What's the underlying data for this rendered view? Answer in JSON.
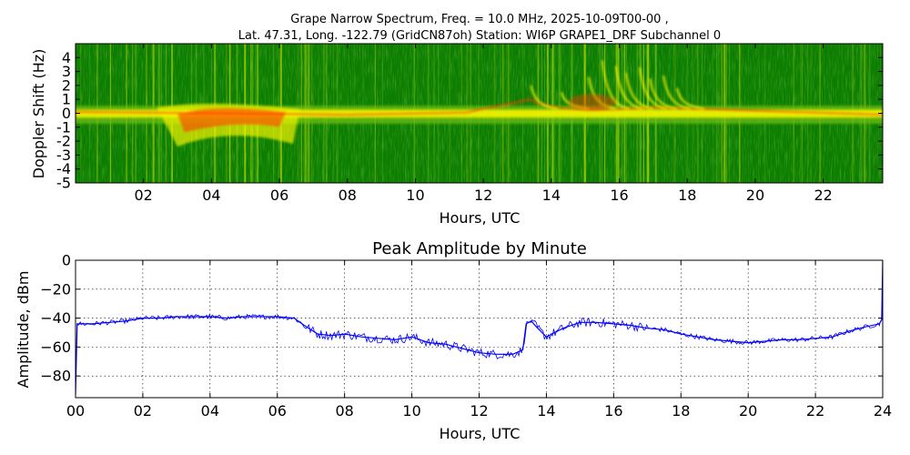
{
  "chart_data": [
    {
      "type": "heatmap",
      "title_line1": "Grape Narrow Spectrum, Freq. = 10.0 MHz, 2025-10-09T00-00 ,",
      "title_line2": "Lat.  47.31, Long. -122.79 (GridCN87oh) Station: WI6P GRAPE1_DRF Subchannel 0",
      "xlabel": "Hours, UTC",
      "ylabel": "Doppler Shift (Hz)",
      "xlim": [
        0,
        23.75
      ],
      "ylim": [
        -5,
        5
      ],
      "x_ticks": [
        2,
        4,
        6,
        8,
        10,
        12,
        14,
        16,
        18,
        20,
        22
      ],
      "x_tick_labels": [
        "02",
        "04",
        "06",
        "08",
        "10",
        "12",
        "14",
        "16",
        "18",
        "20",
        "22"
      ],
      "y_ticks": [
        4,
        3,
        2,
        1,
        0,
        -1,
        -2,
        -3,
        -4,
        -5
      ],
      "y_tick_labels": [
        "4",
        "3",
        "2",
        "1",
        "0",
        "-1",
        "-2",
        "-3",
        "-4",
        "-5"
      ],
      "colors": {
        "background": "#0b7d00",
        "mid": "#6fbf16",
        "high": "#f4f400",
        "peak": "#ff3a00"
      }
    },
    {
      "type": "line",
      "title": "Peak Amplitude by Minute",
      "xlabel": "Hours, UTC",
      "ylabel": "Amplitude, dBm",
      "xlim": [
        0,
        24
      ],
      "ylim": [
        -95,
        0
      ],
      "grid": true,
      "x_ticks": [
        0,
        2,
        4,
        6,
        8,
        10,
        12,
        14,
        16,
        18,
        20,
        22,
        24
      ],
      "x_tick_labels": [
        "00",
        "02",
        "04",
        "06",
        "08",
        "10",
        "12",
        "14",
        "16",
        "18",
        "20",
        "22",
        "24"
      ],
      "y_ticks": [
        0,
        -20,
        -40,
        -60,
        -80
      ],
      "y_tick_labels": [
        "0",
        "−20",
        "−40",
        "−60",
        "−80"
      ],
      "line_color": "#0000ff",
      "x": [
        0,
        0.05,
        0.5,
        1,
        1.5,
        2,
        2.5,
        3,
        3.5,
        4,
        4.5,
        5,
        5.5,
        6,
        6.5,
        6.8,
        7.2,
        7.6,
        8,
        8.5,
        9,
        9.5,
        10,
        10.5,
        11,
        11.5,
        12,
        12.5,
        13,
        13.3,
        13.4,
        13.55,
        13.7,
        14,
        14.5,
        15,
        15.5,
        16,
        16.5,
        17,
        17.5,
        18,
        18.5,
        19,
        19.5,
        20,
        20.5,
        21,
        21.5,
        22,
        22.5,
        23,
        23.5,
        23.9,
        23.97,
        24
      ],
      "values": [
        -93,
        -44,
        -44,
        -43,
        -42,
        -40,
        -40,
        -39,
        -39,
        -39,
        -40,
        -39,
        -39,
        -39,
        -40,
        -45,
        -51,
        -52,
        -51,
        -53,
        -54,
        -55,
        -53,
        -57,
        -58,
        -61,
        -64,
        -65,
        -65,
        -62,
        -44,
        -42,
        -46,
        -53,
        -47,
        -43,
        -43,
        -44,
        -45,
        -47,
        -48,
        -51,
        -53,
        -55,
        -56,
        -57,
        -56,
        -55,
        -55,
        -54,
        -53,
        -49,
        -46,
        -44,
        -41,
        0
      ]
    }
  ]
}
